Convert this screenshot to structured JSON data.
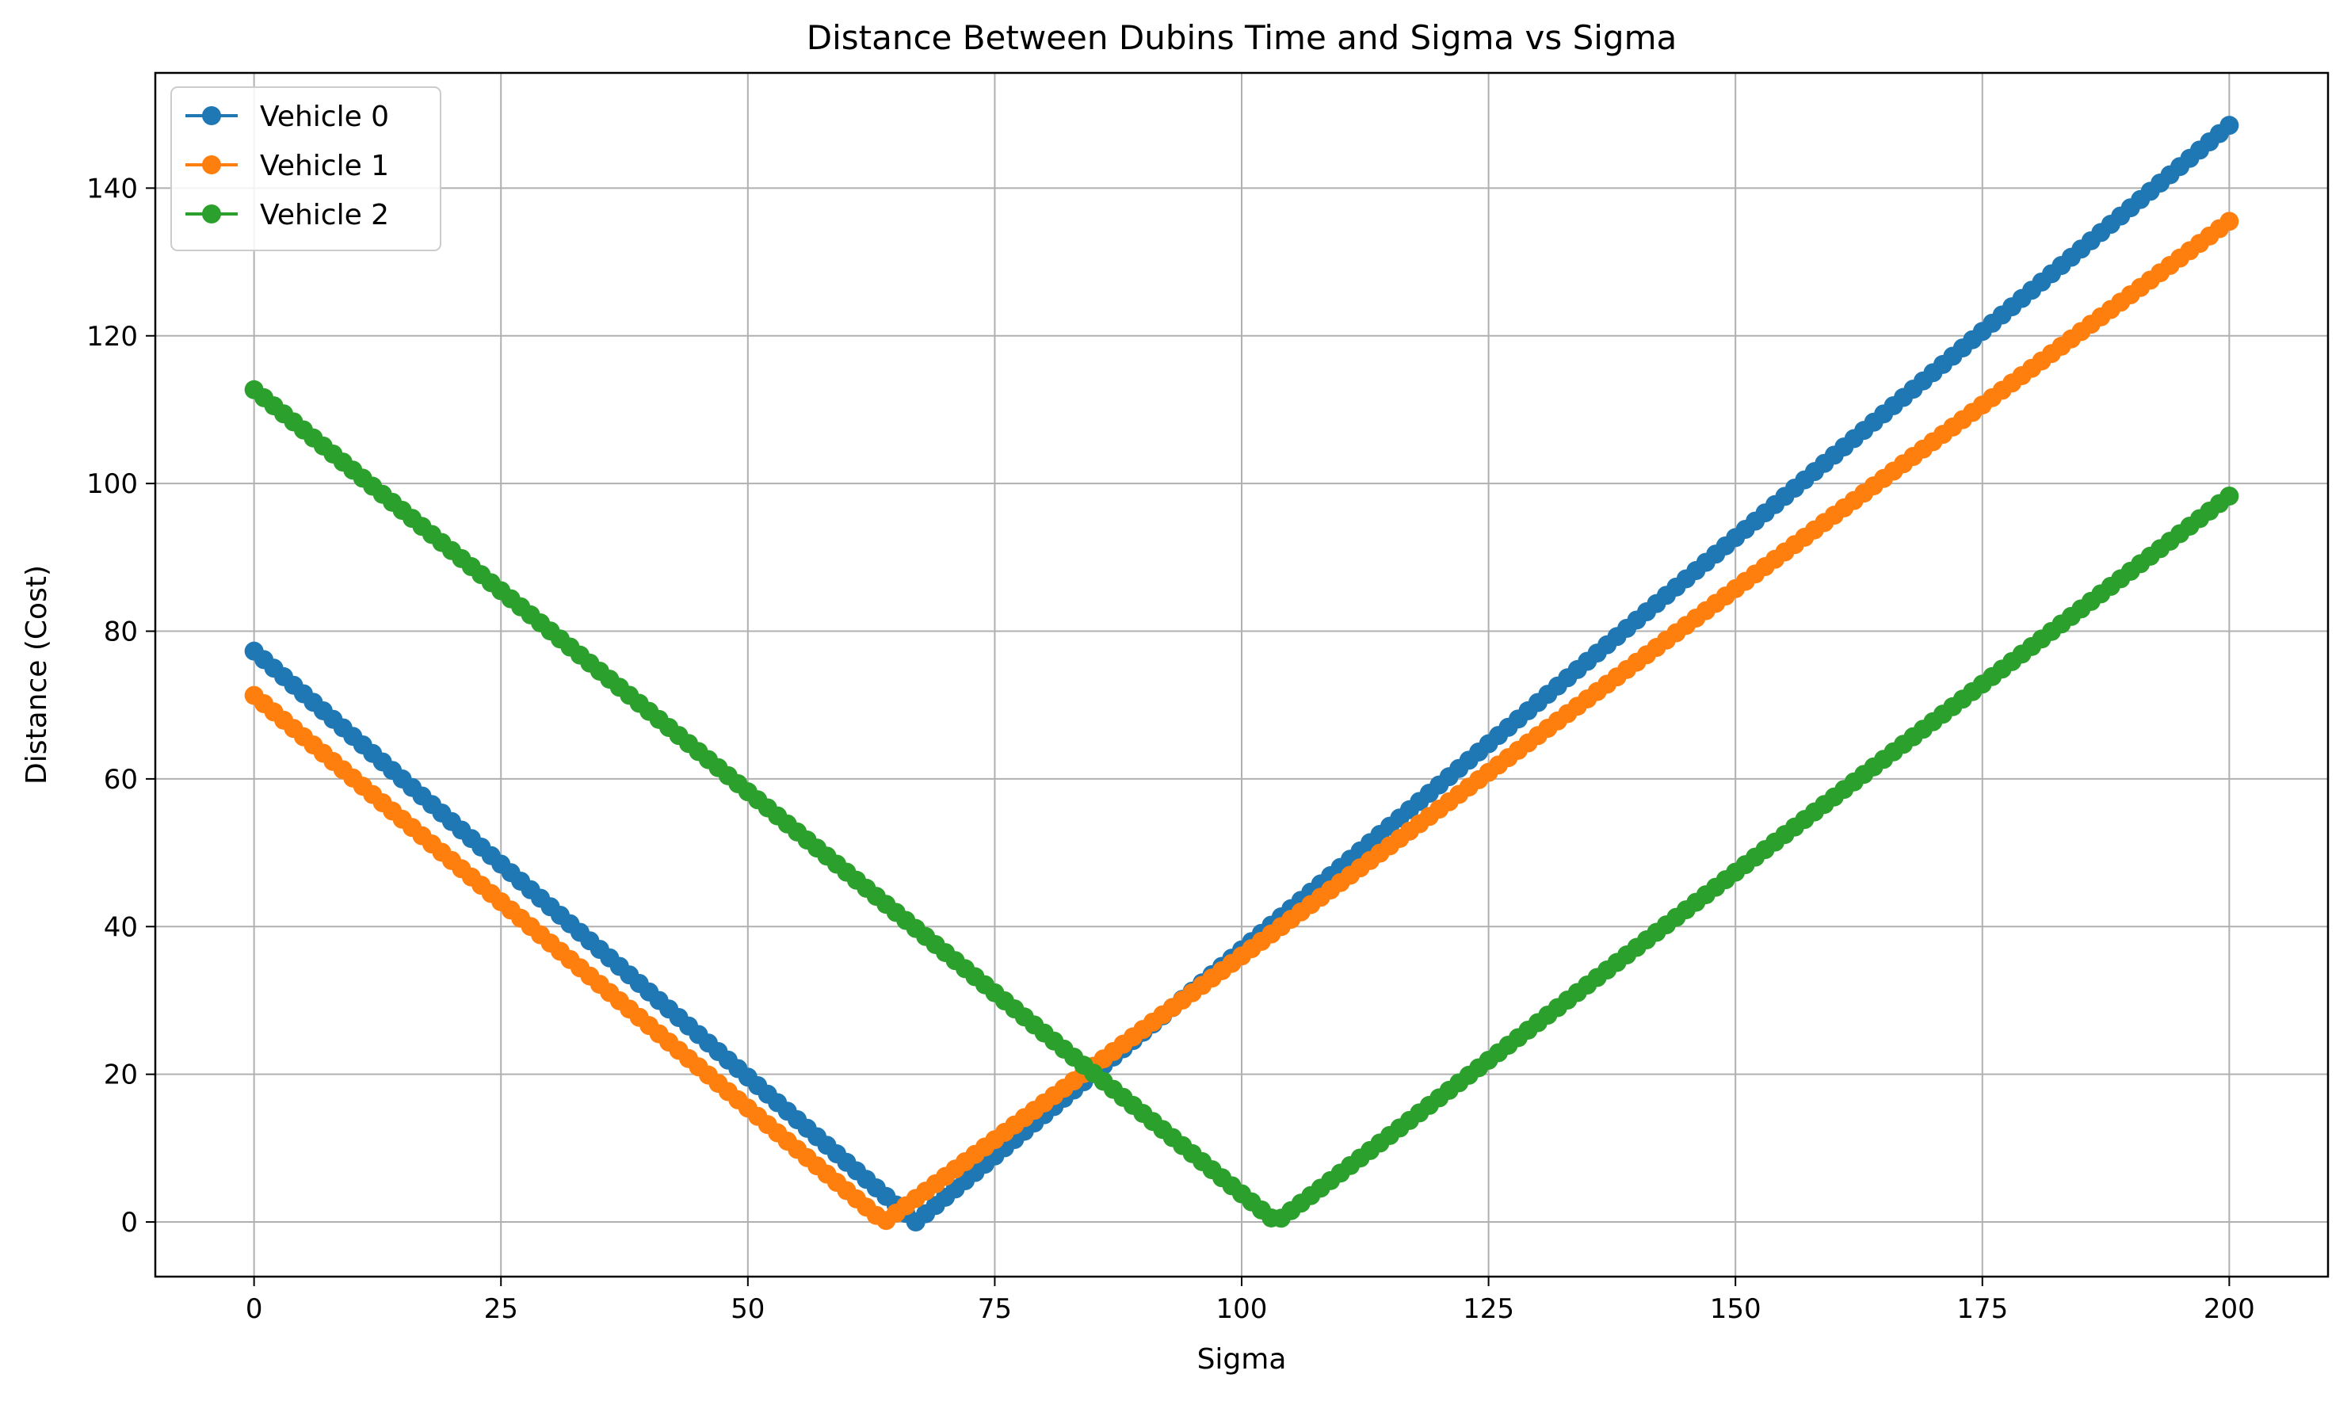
{
  "chart_data": {
    "type": "line",
    "title": "Distance Between Dubins Time and Sigma vs Sigma",
    "xlabel": "Sigma",
    "ylabel": "Distance (Cost)",
    "xlim": [
      -10,
      210
    ],
    "ylim": [
      -7.4,
      155.6
    ],
    "xticks": [
      0,
      25,
      50,
      75,
      100,
      125,
      150,
      175,
      200
    ],
    "yticks": [
      0,
      20,
      40,
      60,
      80,
      100,
      120,
      140
    ],
    "grid": true,
    "legend_position": "top-left",
    "markers": "circle",
    "x_range": [
      0,
      200
    ],
    "series": [
      {
        "name": "Vehicle 0",
        "color": "#1f77b4",
        "start": 77.3,
        "vertex_x": 67,
        "end": 148.5
      },
      {
        "name": "Vehicle 1",
        "color": "#ff7f0e",
        "start": 71.3,
        "vertex_x": 63.8,
        "end": 135.5
      },
      {
        "name": "Vehicle 2",
        "color": "#2ca02c",
        "start": 112.7,
        "vertex_x": 103.5,
        "end": 98.3
      }
    ]
  }
}
